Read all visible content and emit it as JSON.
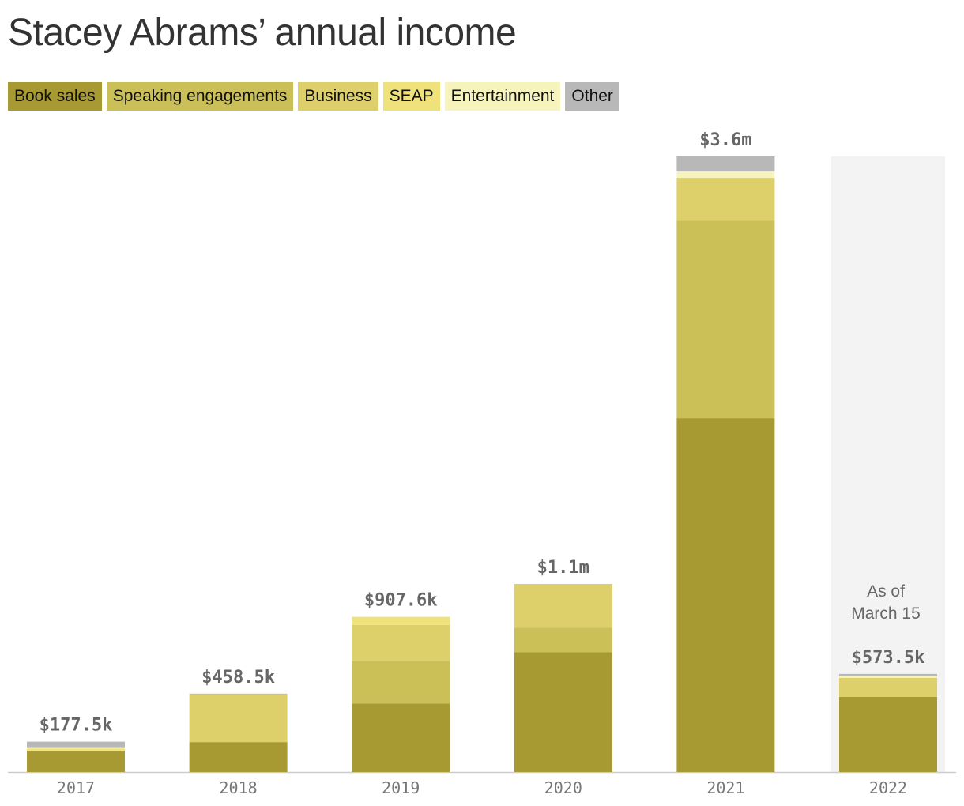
{
  "chart_data": {
    "type": "stacked_bar",
    "title": "Stacey Abrams’ annual income",
    "categories": [
      "2017",
      "2018",
      "2019",
      "2020",
      "2021",
      "2022"
    ],
    "series": [
      {
        "name": "Book sales",
        "color": "#a89a33",
        "values": [
          125000,
          175000,
          400000,
          700000,
          2070000,
          440000
        ]
      },
      {
        "name": "Speaking engagements",
        "color": "#cbbf58",
        "values": [
          0,
          0,
          250000,
          145000,
          1155000,
          0
        ]
      },
      {
        "name": "Business",
        "color": "#ddd06a",
        "values": [
          0,
          280000,
          210000,
          255000,
          250000,
          110000
        ]
      },
      {
        "name": "SEAP",
        "color": "#f0e27a",
        "values": [
          12000,
          0,
          47600,
          0,
          0,
          0
        ]
      },
      {
        "name": "Entertainment",
        "color": "#f7f3bd",
        "values": [
          8000,
          0,
          0,
          0,
          37000,
          12000
        ]
      },
      {
        "name": "Other",
        "color": "#b8b8b8",
        "values": [
          32500,
          3500,
          0,
          0,
          88000,
          11500
        ]
      }
    ],
    "totals": [
      177500,
      458500,
      907600,
      1100000,
      3600000,
      573500
    ],
    "total_labels": [
      "$177.5k",
      "$458.5k",
      "$907.6k",
      "$1.1m",
      "$3.6m",
      "$573.5k"
    ],
    "annotation": [
      "As of",
      "March 15"
    ]
  }
}
